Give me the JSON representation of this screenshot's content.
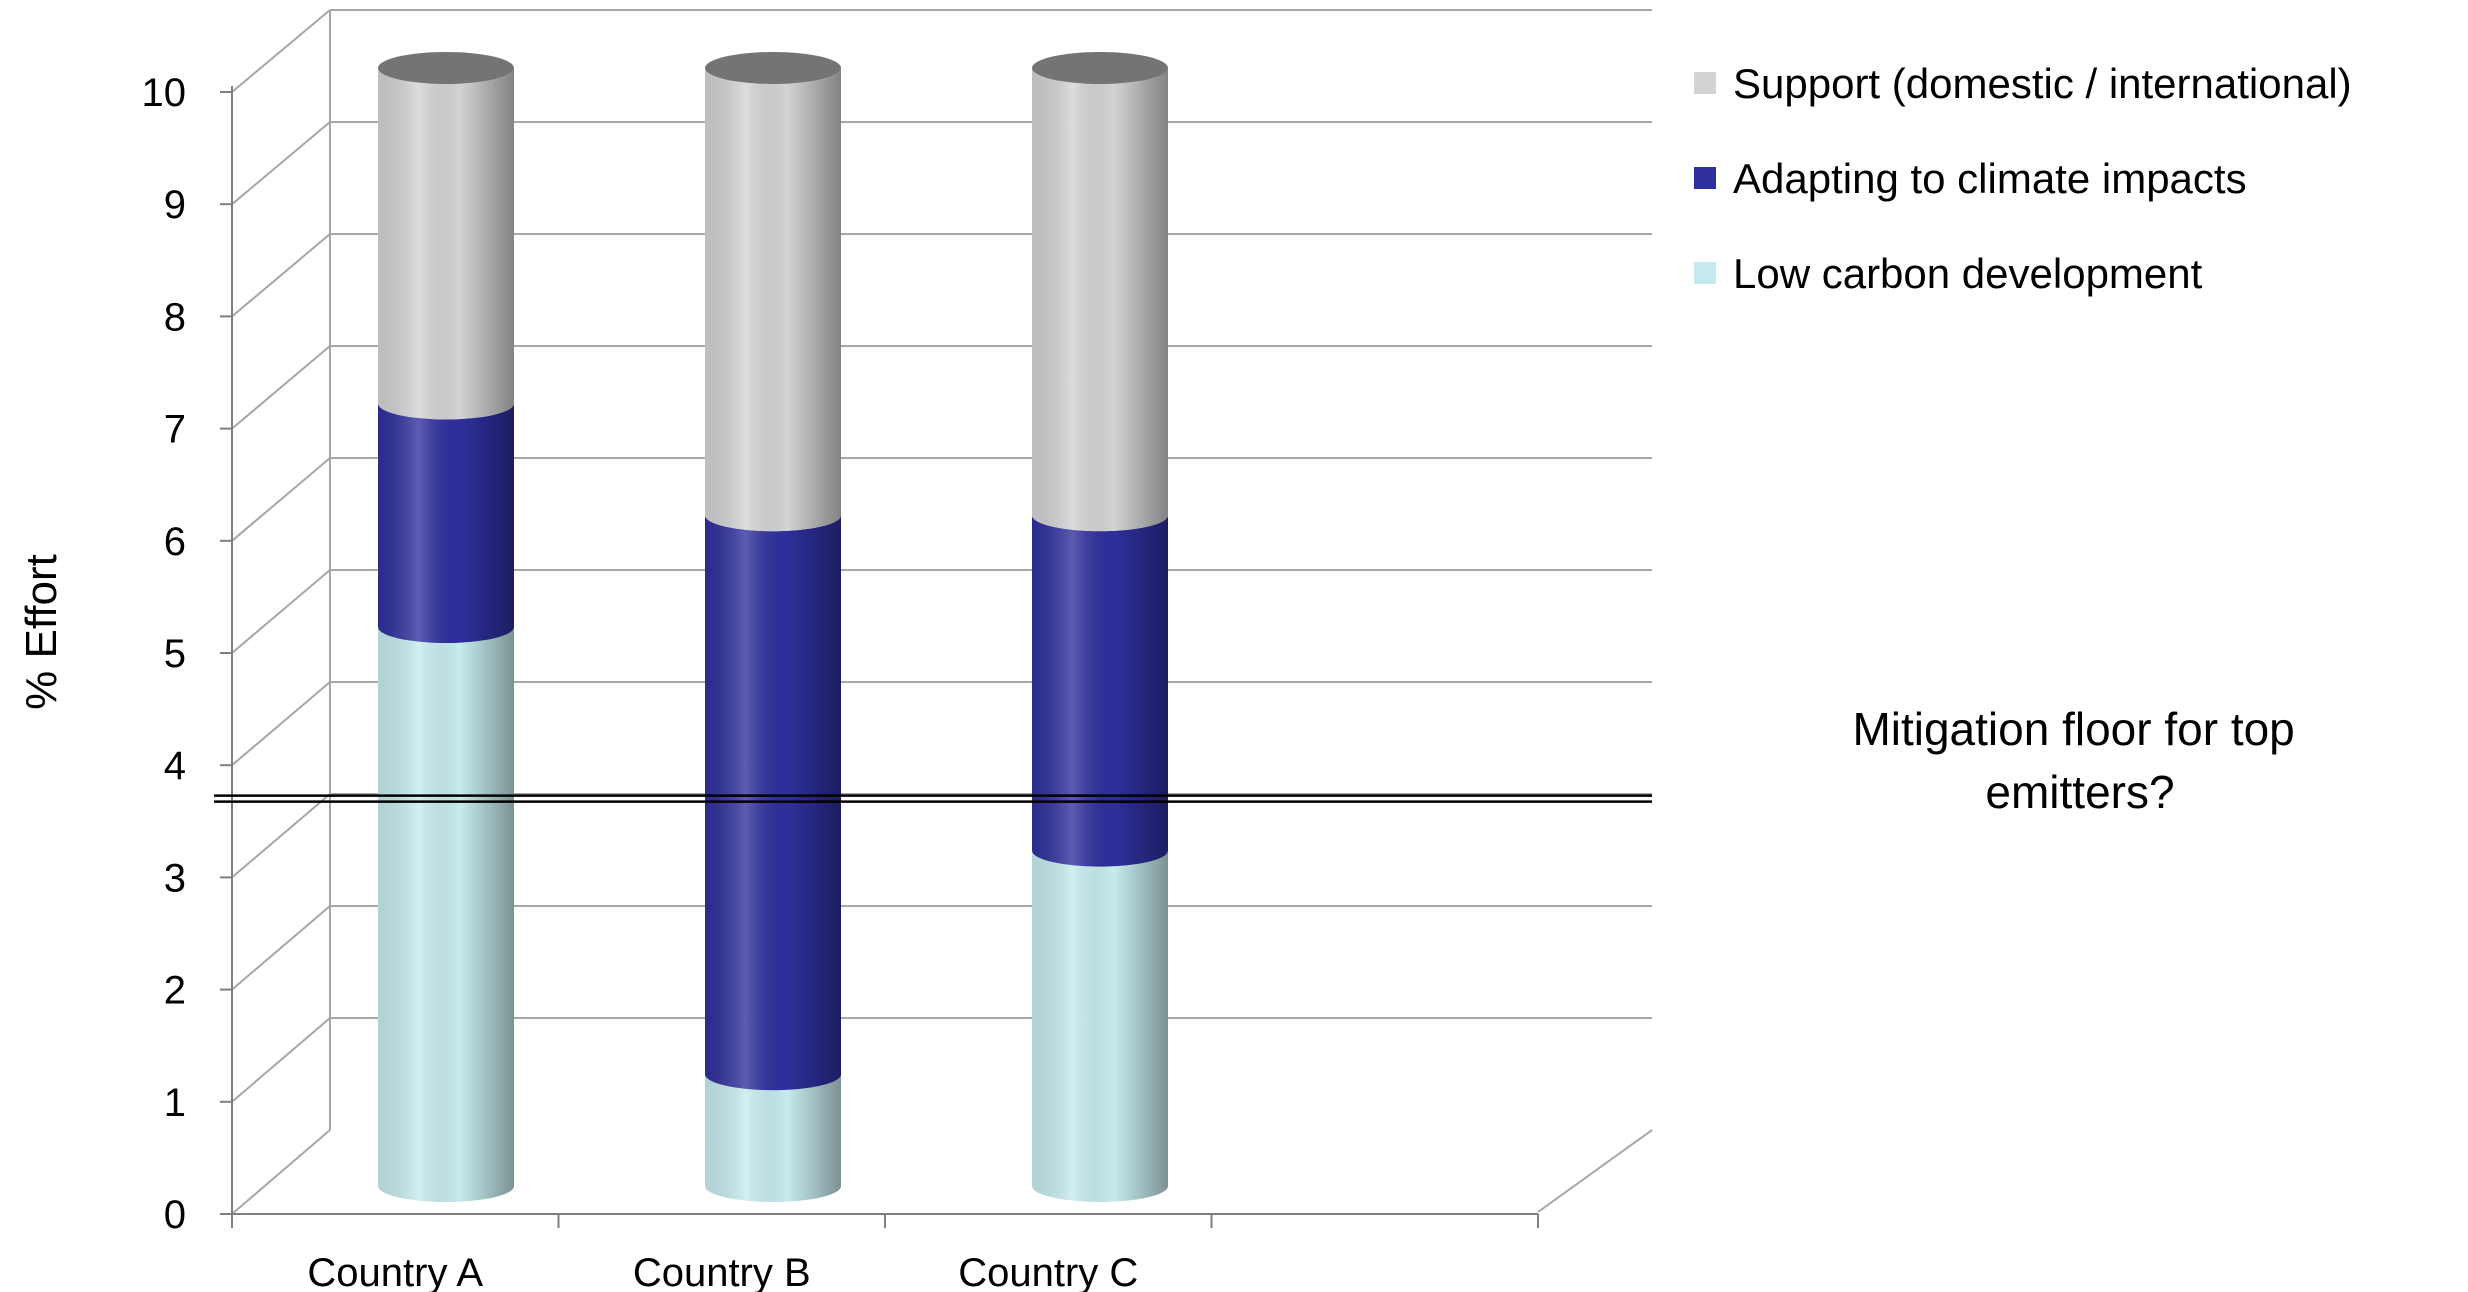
{
  "chart_data": {
    "type": "bar",
    "stacked": true,
    "three_d": true,
    "title": "",
    "xlabel": "",
    "ylabel": "% Effort",
    "ylim": [
      0,
      10
    ],
    "yticks": [
      0,
      1,
      2,
      3,
      4,
      5,
      6,
      7,
      8,
      9,
      10
    ],
    "categories": [
      "Country A",
      "Country B",
      "Country C"
    ],
    "series": [
      {
        "name": "Low carbon development",
        "values": [
          5,
          1,
          3
        ],
        "color": "#c6ebee"
      },
      {
        "name": "Adapting to climate impacts",
        "values": [
          2,
          5,
          3
        ],
        "color": "#2e2f9c"
      },
      {
        "name": "Support (domestic / international)",
        "values": [
          3,
          4,
          4
        ],
        "color": "#d2d3d5"
      }
    ],
    "legend_order": [
      2,
      1,
      0
    ],
    "legend_position": "top-right",
    "grid": true,
    "reference_line": {
      "value": 3.8,
      "color": "#000000"
    },
    "annotation": [
      "Mitigation floor for top",
      "emitters?"
    ]
  }
}
